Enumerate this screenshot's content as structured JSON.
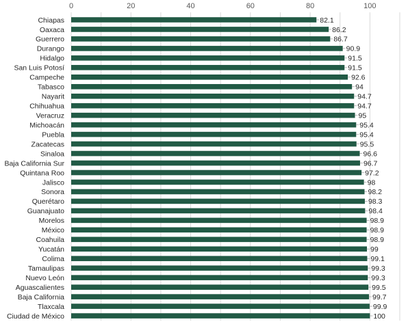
{
  "chart_data": {
    "type": "bar",
    "orientation": "horizontal",
    "categories": [
      "Chiapas",
      "Oaxaca",
      "Guerrero",
      "Durango",
      "Hidalgo",
      "San Luis Potosí",
      "Campeche",
      "Tabasco",
      "Nayarit",
      "Chihuahua",
      "Veracruz",
      "Michoacán",
      "Puebla",
      "Zacatecas",
      "Sinaloa",
      "Baja California Sur",
      "Quintana Roo",
      "Jalisco",
      "Sonora",
      "Querétaro",
      "Guanajuato",
      "Morelos",
      "México",
      "Coahuila",
      "Yucatán",
      "Colima",
      "Tamaulipas",
      "Nuevo León",
      "Aguascalientes",
      "Baja California",
      "Tlaxcala",
      "Ciudad de México"
    ],
    "values": [
      82.1,
      86.2,
      86.7,
      90.9,
      91.5,
      91.5,
      92.6,
      94,
      94.7,
      94.7,
      95,
      95.4,
      95.4,
      95.5,
      96.6,
      96.7,
      97.2,
      98,
      98.2,
      98.3,
      98.4,
      98.9,
      98.9,
      98.9,
      99,
      99.1,
      99.3,
      99.3,
      99.5,
      99.7,
      99.9,
      100
    ],
    "value_labels": [
      "82.1",
      "86.2",
      "86.7",
      "90.9",
      "91.5",
      "91.5",
      "92.6",
      "94",
      "94.7",
      "94.7",
      "95",
      "95.4",
      "95.4",
      "95.5",
      "96.6",
      "96.7",
      "97.2",
      "98",
      "98.2",
      "98.3",
      "98.4",
      "98.9",
      "98.9",
      "98.9",
      "99",
      "99.1",
      "99.3",
      "99.3",
      "99.5",
      "99.7",
      "99.9",
      "100"
    ],
    "x_ticks": [
      "0",
      "20",
      "40",
      "60",
      "80",
      "100"
    ],
    "xlim": [
      0,
      110
    ],
    "axis_position": "top",
    "grid": true,
    "bar_color": "#215a45",
    "title": "",
    "xlabel": "",
    "ylabel": ""
  }
}
